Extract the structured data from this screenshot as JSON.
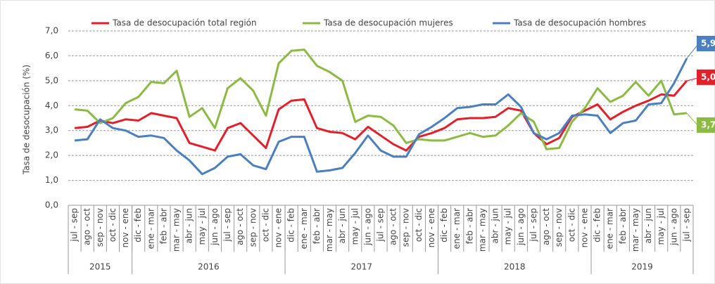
{
  "chart_data": {
    "type": "line",
    "y_label": "Tasa de desocupación (%)",
    "categories": [
      "jul - sep",
      "ago - oct",
      "sep - nov",
      "oct - dic",
      "nov - ene",
      "dic - feb",
      "ene - mar",
      "feb - abr",
      "mar - may",
      "abr - jun",
      "may - jul",
      "jun - ago",
      "jul - sep",
      "ago - oct",
      "sep - nov",
      "oct - dic",
      "nov - ene",
      "dic - feb",
      "ene - mar",
      "feb - abr",
      "mar - may",
      "abr - jun",
      "may - jul",
      "jun - ago",
      "jul - sep",
      "ago - oct",
      "sep - nov",
      "oct - dic",
      "nov - ene",
      "dic - feb",
      "ene - mar",
      "feb - abr",
      "mar - may",
      "abr - jun",
      "may - jul",
      "jun - ago",
      "jul - sep",
      "ago - oct",
      "sep - nov",
      "oct - dic",
      "nov - ene",
      "dic - feb",
      "ene - mar",
      "feb - abr",
      "mar - may",
      "abr - jun",
      "may - jul",
      "jun - ago",
      "jul - sep"
    ],
    "year_groups": [
      {
        "label": "2015",
        "size": 5
      },
      {
        "label": "2016",
        "size": 12
      },
      {
        "label": "2017",
        "size": 12
      },
      {
        "label": "2018",
        "size": 12
      },
      {
        "label": "2019",
        "size": 8
      }
    ],
    "series": [
      {
        "name": "Tasa de desocupación total región",
        "color": "#e3202a",
        "end_label": "5,0",
        "values": [
          3.1,
          3.15,
          3.4,
          3.3,
          3.45,
          3.4,
          3.7,
          3.6,
          3.5,
          2.5,
          2.35,
          2.2,
          3.1,
          3.3,
          2.8,
          2.3,
          3.85,
          4.2,
          4.25,
          3.1,
          2.95,
          2.9,
          2.65,
          3.15,
          2.8,
          2.45,
          2.2,
          2.75,
          2.9,
          3.1,
          3.45,
          3.5,
          3.5,
          3.55,
          3.9,
          3.8,
          2.9,
          2.45,
          2.7,
          3.55,
          3.8,
          4.05,
          3.45,
          3.75,
          4.0,
          4.2,
          4.45,
          4.4,
          5.0
        ]
      },
      {
        "name": "Tasa de desocupación mujeres",
        "color": "#8cbb44",
        "end_label": "3,7",
        "values": [
          3.85,
          3.8,
          3.3,
          3.5,
          4.1,
          4.35,
          4.95,
          4.9,
          5.4,
          3.55,
          3.9,
          3.1,
          4.7,
          5.1,
          4.6,
          3.6,
          5.7,
          6.2,
          6.25,
          5.6,
          5.35,
          5.0,
          3.35,
          3.6,
          3.55,
          3.2,
          2.5,
          2.65,
          2.6,
          2.6,
          2.75,
          2.9,
          2.75,
          2.8,
          3.2,
          3.7,
          3.35,
          2.25,
          2.3,
          3.35,
          3.9,
          4.7,
          4.15,
          4.4,
          4.95,
          4.4,
          5.0,
          3.65,
          3.7
        ]
      },
      {
        "name": "Tasa de desocupación hombres",
        "color": "#4a7fc1",
        "end_label": "5,9",
        "values": [
          2.6,
          2.65,
          3.45,
          3.1,
          3.0,
          2.75,
          2.8,
          2.7,
          2.2,
          1.8,
          1.25,
          1.5,
          1.95,
          2.05,
          1.6,
          1.45,
          2.55,
          2.75,
          2.75,
          1.35,
          1.4,
          1.5,
          2.1,
          2.8,
          2.2,
          1.95,
          1.95,
          2.85,
          3.15,
          3.5,
          3.9,
          3.95,
          4.05,
          4.05,
          4.45,
          3.95,
          2.9,
          2.65,
          2.9,
          3.6,
          3.65,
          3.6,
          2.9,
          3.3,
          3.4,
          4.05,
          4.1,
          4.9,
          5.9
        ]
      }
    ],
    "ylim": [
      0,
      7
    ],
    "yticks": [
      {
        "value": 0,
        "label": "0,0"
      },
      {
        "value": 1,
        "label": "1,0"
      },
      {
        "value": 2,
        "label": "2,0"
      },
      {
        "value": 3,
        "label": "3,0"
      },
      {
        "value": 4,
        "label": "4,0"
      },
      {
        "value": 5,
        "label": "5,0"
      },
      {
        "value": 6,
        "label": "6,0"
      },
      {
        "value": 7,
        "label": "7,0"
      }
    ],
    "grid": true
  }
}
